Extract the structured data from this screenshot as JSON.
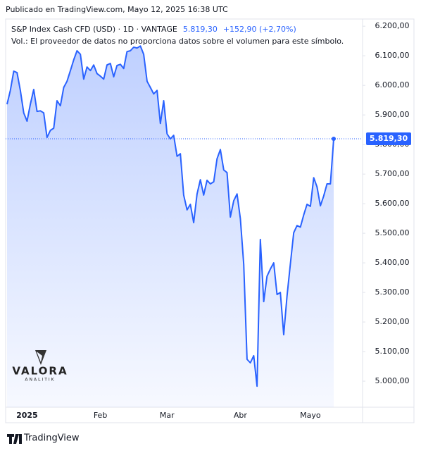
{
  "header": {
    "published": "Publicado en TradingView.com, Mayo 12, 2025 16:38 UTC"
  },
  "chart_data": {
    "type": "area",
    "title": "S&P Index Cash CFD (USD) · 1D · VANTAGE",
    "last_price": {
      "value": 5819.3,
      "label": "5.819,30"
    },
    "change": "+152,90 (+2,70%)",
    "note": "Vol.: El proveedor de datos no proporciona datos sobre el volumen para este símbolo.",
    "color": "#2962ff",
    "grid": false,
    "categories": [
      null,
      null,
      null,
      null,
      null,
      null,
      "2025",
      null,
      null,
      null,
      null,
      null,
      null,
      null,
      null,
      null,
      null,
      null,
      null,
      null,
      null,
      null,
      null,
      null,
      null,
      null,
      null,
      null,
      "Feb",
      null,
      null,
      null,
      null,
      null,
      null,
      null,
      null,
      null,
      null,
      null,
      null,
      null,
      null,
      null,
      null,
      null,
      null,
      null,
      "Mar",
      null,
      null,
      null,
      null,
      null,
      null,
      null,
      null,
      null,
      null,
      null,
      null,
      null,
      null,
      null,
      null,
      null,
      null,
      null,
      null,
      null,
      "Abr",
      null,
      null,
      null,
      null,
      null,
      null,
      null,
      null,
      null,
      null,
      null,
      null,
      null,
      null,
      null,
      null,
      null,
      null,
      null,
      null,
      "Mayo",
      null,
      null,
      null,
      null,
      null,
      null,
      null
    ],
    "values": [
      5936,
      5983,
      6048,
      6043,
      5983,
      5907,
      5879,
      5936,
      5986,
      5912,
      5914,
      5907,
      5824,
      5848,
      5855,
      5948,
      5931,
      5993,
      6014,
      6050,
      6086,
      6117,
      6105,
      6021,
      6062,
      6050,
      6069,
      6040,
      6031,
      6021,
      6069,
      6074,
      6029,
      6067,
      6071,
      6057,
      6114,
      6117,
      6129,
      6126,
      6133,
      6105,
      6014,
      5993,
      5971,
      5983,
      5871,
      5948,
      5836,
      5819,
      5831,
      5760,
      5769,
      5629,
      5579,
      5598,
      5536,
      5633,
      5681,
      5629,
      5679,
      5667,
      5674,
      5752,
      5783,
      5714,
      5705,
      5555,
      5610,
      5633,
      5550,
      5395,
      5074,
      5062,
      5086,
      4983,
      5479,
      5269,
      5355,
      5379,
      5400,
      5293,
      5300,
      5157,
      5288,
      5395,
      5502,
      5526,
      5521,
      5562,
      5598,
      5591,
      5688,
      5657,
      5593,
      5626,
      5667,
      5667,
      5819.3
    ],
    "ylim": [
      4912,
      6229
    ],
    "yticks": [
      {
        "value": 5000,
        "label": "5.000,00"
      },
      {
        "value": 5100,
        "label": "5.100,00"
      },
      {
        "value": 5200,
        "label": "5.200,00"
      },
      {
        "value": 5300,
        "label": "5.300,00"
      },
      {
        "value": 5400,
        "label": "5.400,00"
      },
      {
        "value": 5500,
        "label": "5.500,00"
      },
      {
        "value": 5600,
        "label": "5.600,00"
      },
      {
        "value": 5700,
        "label": "5.700,00"
      },
      {
        "value": 5800,
        "label": "5.800,00"
      },
      {
        "value": 5900,
        "label": "5.900,00"
      },
      {
        "value": 6000,
        "label": "6.000,00"
      },
      {
        "value": 6100,
        "label": "6.100,00"
      },
      {
        "value": 6200,
        "label": "6.200,00"
      }
    ]
  },
  "logo": {
    "name": "VALORA",
    "tagline": "ANALITIK"
  },
  "footer": {
    "brand": "TradingView"
  }
}
